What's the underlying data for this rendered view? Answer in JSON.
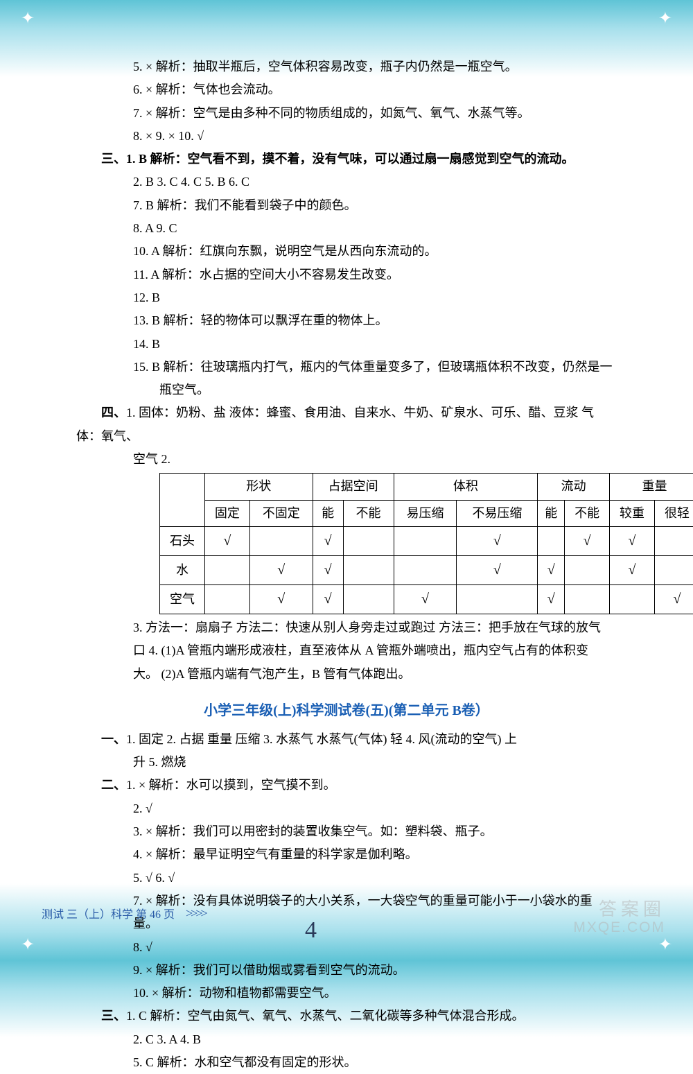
{
  "decorations": {
    "star": "✦"
  },
  "lines": {
    "l1": "5. ×  解析：抽取半瓶后，空气体积容易改变，瓶子内仍然是一瓶空气。",
    "l2": "6. ×  解析：气体也会流动。",
    "l3": "7. ×  解析：空气是由多种不同的物质组成的，如氮气、氧气、水蒸气等。",
    "l4": "8. ×  9. ×  10. √",
    "l5a": "三、",
    "l5b": "1. B  解析：空气看不到，摸不着，没有气味，可以通过扇一扇感觉到空气的流动。",
    "l6": "2. B  3. C  4. C  5. B  6. C",
    "l7": "7. B  解析：我们不能看到袋子中的颜色。",
    "l8": "8. A  9. C",
    "l9": "10. A  解析：红旗向东飘，说明空气是从西向东流动的。",
    "l10": "11. A  解析：水占据的空间大小不容易发生改变。",
    "l11": "12. B",
    "l12": "13. B  解析：轻的物体可以飘浮在重的物体上。",
    "l13": "14. B",
    "l14": "15. B  解析：往玻璃瓶内打气，瓶内的气体重量变多了，但玻璃瓶体积不改变，仍然是一",
    "l14b": "瓶空气。",
    "l15a": "四、",
    "l15b": "1. 固体：奶粉、盐  液体：蜂蜜、食用油、自来水、牛奶、矿泉水、可乐、醋、豆浆  气体：氧气、",
    "l15c": "空气  2.",
    "l16": "3. 方法一：扇扇子  方法二：快速从别人身旁走过或跑过  方法三：把手放在气球的放气",
    "l17": "口  4. (1)A 管瓶内端形成液柱，直至液体从 A 管瓶外端喷出，瓶内空气占有的体积变",
    "l18": "大。  (2)A 管瓶内端有气泡产生，B 管有气体跑出。",
    "title": "小学三年级(上)科学测试卷(五)(第二单元  B卷）",
    "l20a": "一、",
    "l20b": "1. 固定  2. 占据  重量  压缩  3. 水蒸气  水蒸气(气体)  轻  4. 风(流动的空气)  上",
    "l20c": "升  5. 燃烧",
    "l21a": "二、",
    "l21b": "1. ×  解析：水可以摸到，空气摸不到。",
    "l22": "2. √",
    "l23": "3. ×  解析：我们可以用密封的装置收集空气。如：塑料袋、瓶子。",
    "l24": "4. ×  解析：最早证明空气有重量的科学家是伽利略。",
    "l25": "5. √  6. √",
    "l26": "7. ×  解析：没有具体说明袋子的大小关系，一大袋空气的重量可能小于一小袋水的重量。",
    "l27": "8. √",
    "l28": "9. ×  解析：我们可以借助烟或雾看到空气的流动。",
    "l29": "10. ×  解析：动物和植物都需要空气。",
    "l30a": "三、",
    "l30b": "1. C  解析：空气由氮气、氧气、水蒸气、二氧化碳等多种气体混合形成。",
    "l31": "2. C  3. A  4. B",
    "l32": "5. C  解析：水和空气都没有固定的形状。"
  },
  "table": {
    "headers_top": [
      "",
      "形状",
      "占据空间",
      "体积",
      "流动",
      "重量"
    ],
    "headers_sub": [
      "固定",
      "不固定",
      "能",
      "不能",
      "易压缩",
      "不易压缩",
      "能",
      "不能",
      "较重",
      "很轻"
    ],
    "row_labels": [
      "石头",
      "水",
      "空气"
    ],
    "marks": {
      "stone": [
        "√",
        "",
        "√",
        "",
        "",
        "√",
        "",
        "√",
        "√",
        ""
      ],
      "water": [
        "",
        "√",
        "√",
        "",
        "",
        "√",
        "√",
        "",
        "√",
        ""
      ],
      "air": [
        "",
        "√",
        "√",
        "",
        "√",
        "",
        "√",
        "",
        "",
        "√"
      ]
    },
    "col_widths": [
      "60",
      "60",
      "66",
      "50",
      "54",
      "72",
      "84",
      "50",
      "54",
      "58",
      "58"
    ],
    "border_color": "#000000"
  },
  "footer": {
    "text": "测试  三（上）科学  第 46 页",
    "arrow": ">>>>",
    "page_marker": "4",
    "watermark_top": "答案圈",
    "watermark_bottom": "MXQE.COM"
  }
}
